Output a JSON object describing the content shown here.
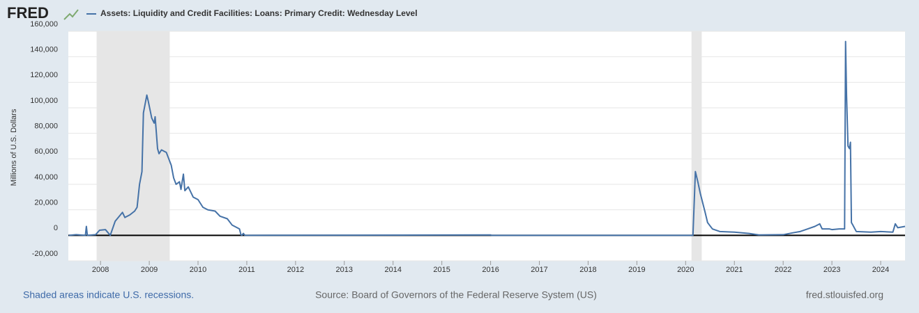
{
  "header": {
    "logo": "FRED"
  },
  "chart_data": {
    "type": "line",
    "y_label": "Millions of U.S. Dollars",
    "x": [
      2007.35,
      2007.5,
      2007.69,
      2007.71,
      2007.73,
      2007.9,
      2007.98,
      2008.1,
      2008.2,
      2008.3,
      2008.45,
      2008.5,
      2008.6,
      2008.7,
      2008.75,
      2008.8,
      2008.85,
      2008.88,
      2008.95,
      2008.98,
      2009.05,
      2009.1,
      2009.12,
      2009.17,
      2009.2,
      2009.25,
      2009.35,
      2009.45,
      2009.5,
      2009.55,
      2009.62,
      2009.65,
      2009.7,
      2009.73,
      2009.8,
      2009.85,
      2009.9,
      2010.0,
      2010.1,
      2010.2,
      2010.35,
      2010.45,
      2010.6,
      2010.7,
      2010.85,
      2010.88,
      2010.9,
      2010.93,
      2010.96,
      2016.0,
      2016.02,
      2020.15,
      2020.2,
      2020.25,
      2020.3,
      2020.4,
      2020.45,
      2020.55,
      2020.7,
      2021.0,
      2021.3,
      2021.5,
      2022.0,
      2022.2,
      2022.35,
      2022.5,
      2022.65,
      2022.75,
      2022.8,
      2022.95,
      2023.0,
      2023.15,
      2023.26,
      2023.28,
      2023.3,
      2023.33,
      2023.36,
      2023.38,
      2023.4,
      2023.43,
      2023.5,
      2023.8,
      2024.0,
      2024.25,
      2024.3,
      2024.35,
      2024.5
    ],
    "series": [
      {
        "name": "Assets: Liquidity and Credit Facilities: Loans: Primary Credit: Wednesday Level",
        "color": "#4572a7",
        "values": [
          0,
          500,
          0,
          7000,
          0,
          500,
          4000,
          4500,
          0,
          11000,
          18000,
          14000,
          16000,
          19000,
          22000,
          40000,
          50000,
          96000,
          110000,
          105000,
          92000,
          88000,
          93000,
          68000,
          64000,
          67000,
          65000,
          55000,
          45000,
          40000,
          42000,
          36000,
          48000,
          35000,
          38000,
          34000,
          30000,
          28000,
          22000,
          20000,
          19000,
          15000,
          13000,
          8000,
          5000,
          500,
          0,
          1500,
          0,
          300,
          0,
          0,
          50000,
          42000,
          33000,
          18000,
          10000,
          5000,
          3000,
          2500,
          1500,
          300,
          500,
          2000,
          3000,
          5000,
          7000,
          9000,
          5000,
          5000,
          4500,
          5000,
          5000,
          152000,
          110000,
          70000,
          68000,
          73000,
          10000,
          8000,
          3000,
          2500,
          3000,
          2500,
          9000,
          6000,
          7000
        ]
      }
    ],
    "xlim": [
      2007.34,
      2024.5
    ],
    "xticks": [
      2008,
      2009,
      2010,
      2011,
      2012,
      2013,
      2014,
      2015,
      2016,
      2017,
      2018,
      2019,
      2020,
      2021,
      2022,
      2023,
      2024
    ],
    "ylim": [
      -20000,
      160000
    ],
    "yticks": [
      {
        "value": -20000,
        "label": "-20,000"
      },
      0,
      {
        "value": 20000,
        "label": "20,000"
      },
      {
        "value": 40000,
        "label": "40,000"
      },
      {
        "value": 60000,
        "label": "60,000"
      },
      {
        "value": 80000,
        "label": "80,000"
      },
      {
        "value": 100000,
        "label": "100,000"
      },
      {
        "value": 120000,
        "label": "120,000"
      },
      {
        "value": 140000,
        "label": "140,000"
      },
      {
        "value": 160000,
        "label": "160,000"
      }
    ],
    "grid": true,
    "recessions": [
      [
        2007.92,
        2009.42
      ],
      [
        2020.12,
        2020.33
      ]
    ],
    "recession_color": "#e6e6e6"
  },
  "footer": {
    "note": "Shaded areas indicate U.S. recessions.",
    "source": "Source: Board of Governors of the Federal Reserve System (US)",
    "site": "fred.stlouisfed.org"
  }
}
